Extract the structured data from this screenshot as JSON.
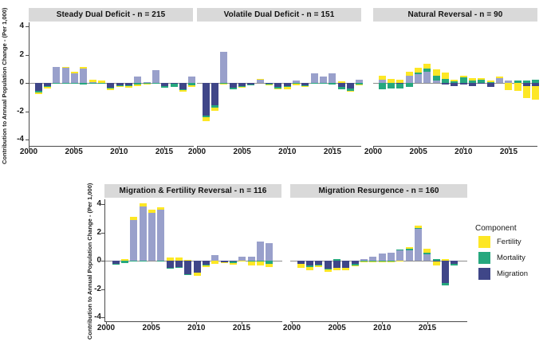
{
  "figure": {
    "y_axis_label": "Contribution to Annual Population Change - (Per 1,000)",
    "legend": {
      "title": "Component",
      "position": "right-middle",
      "items": [
        {
          "label": "Fertility",
          "color": "#FDE725"
        },
        {
          "label": "Mortality",
          "color": "#26A87E"
        },
        {
          "label": "Migration",
          "color": "#3F4688"
        }
      ]
    },
    "colors": {
      "fertility": "#FDE725",
      "mortality": "#26A87E",
      "migration": "#3F4688",
      "migration_positive": "#99A0CB",
      "strip_background": "#D9D9D9",
      "axis_line": "#4A4A4A",
      "zero_line": "#8C8C8C"
    }
  },
  "chart_data": {
    "type": "bar",
    "stacked": true,
    "x": [
      2001,
      2002,
      2003,
      2004,
      2005,
      2006,
      2007,
      2008,
      2009,
      2010,
      2011,
      2012,
      2013,
      2014,
      2015,
      2016,
      2017,
      2018
    ],
    "x_ticks": [
      "2000",
      "2005",
      "2010",
      "2015"
    ],
    "y_ticks": [
      4,
      2,
      0,
      -2,
      -4
    ],
    "ylim": [
      -4.4,
      4.4
    ],
    "xlabel": "",
    "ylabel": "Contribution to Annual Population Change - (Per 1,000)",
    "grid": false,
    "panels": [
      {
        "title": "Steady Dual Deficit - n = 215",
        "row": 0,
        "series": {
          "fertility": [
            -0.15,
            -0.1,
            0.0,
            0.1,
            0.07,
            0.1,
            0.15,
            0.15,
            -0.1,
            -0.1,
            -0.15,
            -0.15,
            -0.05,
            0.0,
            0.0,
            0.0,
            -0.1,
            -0.15
          ],
          "mortality": [
            -0.1,
            -0.05,
            -0.05,
            -0.08,
            -0.05,
            -0.1,
            -0.05,
            -0.05,
            -0.05,
            -0.05,
            -0.05,
            -0.1,
            -0.05,
            -0.05,
            -0.15,
            -0.25,
            -0.05,
            -0.15
          ],
          "migration": [
            -0.55,
            -0.25,
            1.1,
            1.05,
            0.7,
            1.0,
            0.05,
            0.0,
            -0.35,
            -0.15,
            -0.15,
            0.45,
            0.05,
            0.9,
            -0.2,
            -0.05,
            -0.45,
            0.45
          ]
        }
      },
      {
        "title": "Volatile Dual Deficit - n = 151",
        "row": 0,
        "series": {
          "fertility": [
            -0.25,
            -0.2,
            -0.05,
            0.0,
            -0.05,
            0.0,
            0.05,
            -0.05,
            -0.05,
            -0.15,
            -0.1,
            -0.1,
            0.0,
            0.0,
            0.0,
            0.1,
            -0.05,
            -0.05
          ],
          "mortality": [
            -0.15,
            -0.15,
            -0.05,
            -0.1,
            -0.03,
            -0.07,
            0.0,
            -0.05,
            -0.1,
            -0.1,
            -0.05,
            -0.05,
            -0.05,
            -0.08,
            -0.12,
            -0.15,
            -0.15,
            -0.1
          ],
          "migration": [
            -2.3,
            -1.6,
            2.2,
            -0.35,
            -0.25,
            -0.1,
            0.25,
            -0.05,
            -0.3,
            -0.2,
            0.15,
            -0.15,
            0.65,
            0.45,
            0.7,
            -0.3,
            -0.4,
            0.25
          ]
        }
      },
      {
        "title": "Natural Reversal - n = 90",
        "row": 0,
        "series": {
          "fertility": [
            0.25,
            0.3,
            0.25,
            0.3,
            0.3,
            0.35,
            0.45,
            0.45,
            0.15,
            0.1,
            0.2,
            0.1,
            0.1,
            0.1,
            -0.5,
            -0.55,
            -0.85,
            -0.95
          ],
          "mortality": [
            -0.45,
            -0.4,
            -0.35,
            -0.3,
            0.15,
            0.2,
            0.35,
            0.3,
            0.1,
            0.4,
            0.15,
            0.25,
            0.05,
            0.0,
            0.0,
            0.15,
            0.15,
            0.25
          ],
          "migration": [
            0.25,
            0.0,
            -0.05,
            0.5,
            0.6,
            0.8,
            0.15,
            -0.1,
            -0.25,
            -0.1,
            -0.2,
            -0.05,
            -0.3,
            0.35,
            0.15,
            0.0,
            -0.2,
            -0.25
          ]
        }
      },
      {
        "title": "Migration & Fertility Reversal - n = 116",
        "row": 1,
        "series": {
          "fertility": [
            0.0,
            0.1,
            0.25,
            0.2,
            0.2,
            0.2,
            0.25,
            0.25,
            0.08,
            -0.2,
            -0.15,
            -0.2,
            -0.05,
            -0.15,
            -0.05,
            -0.3,
            -0.3,
            -0.2
          ],
          "mortality": [
            -0.1,
            -0.15,
            -0.05,
            -0.05,
            0.0,
            -0.05,
            -0.05,
            -0.02,
            -0.03,
            -0.02,
            -0.02,
            -0.02,
            -0.02,
            -0.1,
            0.0,
            -0.05,
            -0.05,
            -0.25
          ],
          "migration": [
            -0.2,
            0.0,
            2.85,
            3.85,
            3.4,
            3.6,
            -0.5,
            -0.45,
            -0.95,
            -0.85,
            -0.3,
            0.4,
            -0.1,
            -0.05,
            0.3,
            0.3,
            1.35,
            1.25
          ]
        }
      },
      {
        "title": "Migration Resurgence - n = 160",
        "row": 1,
        "series": {
          "fertility": [
            -0.25,
            -0.2,
            -0.1,
            -0.2,
            -0.15,
            -0.15,
            -0.03,
            -0.03,
            -0.05,
            -0.08,
            -0.05,
            -0.05,
            0.1,
            0.2,
            0.3,
            -0.3,
            0.1,
            0.0
          ],
          "mortality": [
            -0.03,
            -0.1,
            -0.03,
            -0.05,
            0.1,
            -0.03,
            -0.1,
            -0.05,
            -0.05,
            -0.05,
            -0.03,
            0.03,
            0.1,
            0.05,
            0.1,
            0.1,
            -0.15,
            -0.15
          ],
          "migration": [
            -0.2,
            -0.35,
            -0.3,
            -0.55,
            -0.5,
            -0.5,
            -0.25,
            0.1,
            0.3,
            0.5,
            0.55,
            0.75,
            0.75,
            2.25,
            0.45,
            -0.05,
            -1.6,
            -0.2
          ]
        }
      }
    ]
  }
}
